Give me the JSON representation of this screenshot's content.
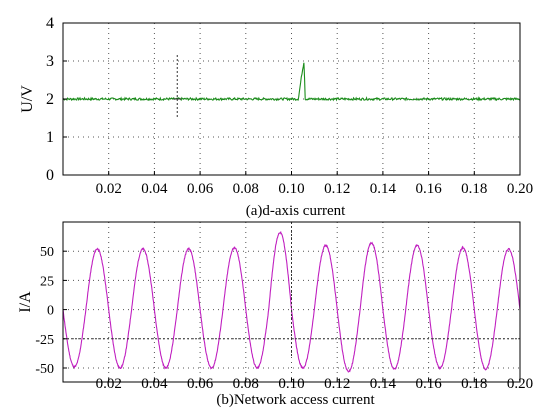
{
  "chart_data": [
    {
      "type": "line",
      "title": "(a)d-axis current",
      "xlabel": "",
      "ylabel": "U/V",
      "xlim": [
        0,
        0.2
      ],
      "ylim": [
        0,
        4
      ],
      "x_ticks": [
        0.02,
        0.04,
        0.06,
        0.08,
        0.1,
        0.12,
        0.14,
        0.16,
        0.18,
        0.2
      ],
      "x_tick_labels": [
        "0.02",
        "0.04",
        "0.06",
        "0.08",
        "0.10",
        "0.12",
        "0.14",
        "0.16",
        "0.18",
        "0.20"
      ],
      "y_ticks": [
        0,
        1,
        2,
        3,
        4
      ],
      "y_tick_labels": [
        "0",
        "1",
        "2",
        "3",
        "4"
      ],
      "grid": "dotted",
      "series": [
        {
          "color": "#1a8c1a",
          "x": [
            0,
            0.103,
            0.1045,
            0.1055,
            0.106,
            0.2
          ],
          "y": [
            2.0,
            2.0,
            2.65,
            3.0,
            2.0,
            2.0
          ]
        }
      ]
    },
    {
      "type": "line",
      "title": "(b)Network access current",
      "xlabel": "",
      "ylabel": "I/A",
      "xlim": [
        0,
        0.2
      ],
      "ylim": [
        -62,
        75
      ],
      "x_ticks": [
        0.02,
        0.04,
        0.06,
        0.08,
        0.1,
        0.12,
        0.14,
        0.16,
        0.18,
        0.2
      ],
      "x_tick_labels": [
        "0.02",
        "0.04",
        "0.06",
        "0.08",
        "0.10",
        "0.12",
        "0.14",
        "0.16",
        "0.18",
        "0.20"
      ],
      "y_ticks": [
        50,
        25,
        0,
        -25,
        -50
      ],
      "y_tick_labels": [
        "50",
        "25",
        "0",
        "-25",
        "-50"
      ],
      "grid": "dotted",
      "series": [
        {
          "color": "#c020c0",
          "frequency_hz": 50,
          "amplitude": 51,
          "peak_x": [
            0.015,
            0.035,
            0.055,
            0.075,
            0.095,
            0.115,
            0.135,
            0.155,
            0.175,
            0.195
          ],
          "peak_y": [
            52,
            52,
            52,
            53,
            66,
            55,
            57,
            55,
            53,
            52
          ],
          "trough_x": [
            0.005,
            0.025,
            0.045,
            0.065,
            0.085,
            0.105,
            0.125,
            0.145,
            0.165,
            0.185
          ],
          "trough_y": [
            -49,
            -50,
            -50,
            -50,
            -50,
            -50,
            -53,
            -51,
            -50,
            -51
          ]
        }
      ]
    }
  ]
}
